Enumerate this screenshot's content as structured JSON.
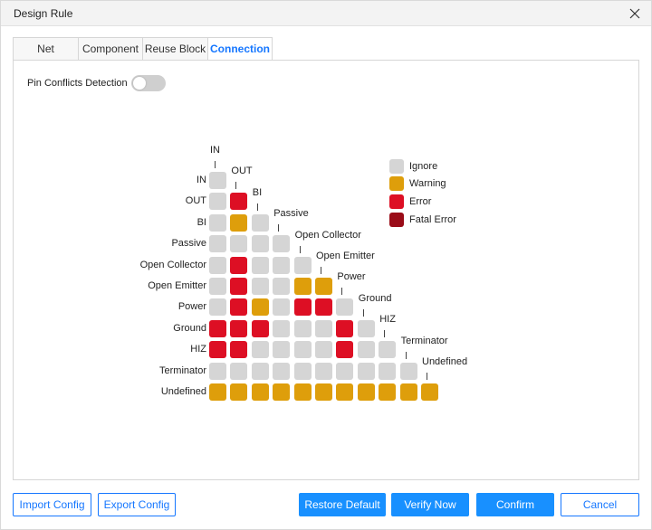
{
  "window": {
    "title": "Design Rule"
  },
  "tabs": [
    {
      "label": "Net",
      "active": false
    },
    {
      "label": "Component",
      "active": false
    },
    {
      "label": "Reuse Block",
      "active": false
    },
    {
      "label": "Connection",
      "active": true
    }
  ],
  "toggle": {
    "label": "Pin Conflicts Detection",
    "enabled": false
  },
  "pin_types": [
    "IN",
    "OUT",
    "BI",
    "Passive",
    "Open Collector",
    "Open Emitter",
    "Power",
    "Ground",
    "HIZ",
    "Terminator",
    "Undefined"
  ],
  "matrix": [
    [
      "I"
    ],
    [
      "I",
      "E"
    ],
    [
      "I",
      "W",
      "I"
    ],
    [
      "I",
      "I",
      "I",
      "I"
    ],
    [
      "I",
      "E",
      "I",
      "I",
      "I"
    ],
    [
      "I",
      "E",
      "I",
      "I",
      "W",
      "W"
    ],
    [
      "I",
      "E",
      "W",
      "I",
      "E",
      "E",
      "I"
    ],
    [
      "E",
      "E",
      "E",
      "I",
      "I",
      "I",
      "E",
      "I"
    ],
    [
      "E",
      "E",
      "I",
      "I",
      "I",
      "I",
      "E",
      "I",
      "I"
    ],
    [
      "I",
      "I",
      "I",
      "I",
      "I",
      "I",
      "I",
      "I",
      "I",
      "I"
    ],
    [
      "W",
      "W",
      "W",
      "W",
      "W",
      "W",
      "W",
      "W",
      "W",
      "W",
      "W"
    ]
  ],
  "legend": [
    {
      "key": "I",
      "label": "Ignore",
      "color": "#d5d5d5"
    },
    {
      "key": "W",
      "label": "Warning",
      "color": "#de9e0b"
    },
    {
      "key": "E",
      "label": "Error",
      "color": "#dd0f24"
    },
    {
      "key": "F",
      "label": "Fatal Error",
      "color": "#9a0c18"
    }
  ],
  "buttons": {
    "import": "Import Config",
    "export": "Export Config",
    "restore": "Restore Default",
    "verify": "Verify Now",
    "confirm": "Confirm",
    "cancel": "Cancel"
  },
  "colors": {
    "accent": "#1890ff",
    "toggle_off": "#cfcfcf"
  }
}
